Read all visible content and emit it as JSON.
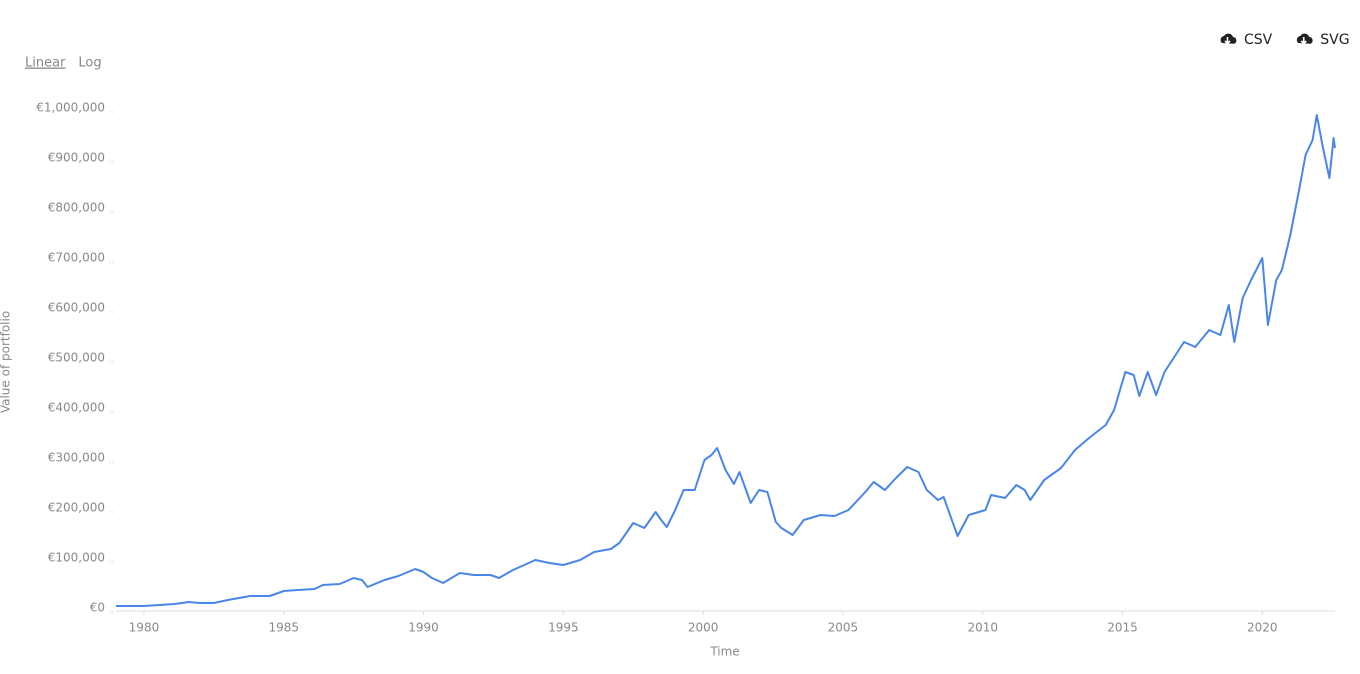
{
  "scale_options": [
    "Linear",
    "Log"
  ],
  "downloads": [
    "CSV",
    "SVG"
  ],
  "chart_data": {
    "type": "line",
    "x_label": "Time",
    "y_label": "Value of portfolio",
    "log_scale": false,
    "grid": false,
    "xlim": [
      1979,
      2022.6
    ],
    "xticks": [
      1980,
      1985,
      1990,
      1995,
      2000,
      2005,
      2010,
      2015,
      2020
    ],
    "ylim": [
      0,
      1000000
    ],
    "yticks": [
      {
        "value": 0,
        "label": "€0"
      },
      {
        "value": 100000,
        "label": "€100,000"
      },
      {
        "value": 200000,
        "label": "€200,000"
      },
      {
        "value": 300000,
        "label": "€300,000"
      },
      {
        "value": 400000,
        "label": "€400,000"
      },
      {
        "value": 500000,
        "label": "€500,000"
      },
      {
        "value": 600000,
        "label": "€600,000"
      },
      {
        "value": 700000,
        "label": "€700,000"
      },
      {
        "value": 800000,
        "label": "€800,000"
      },
      {
        "value": 900000,
        "label": "€900,000"
      },
      {
        "value": 1000000,
        "label": "€1,000,000"
      }
    ],
    "x": [
      1979.0,
      1980.0,
      1981.1,
      1981.6,
      1982.0,
      1982.5,
      1983.0,
      1983.8,
      1984.5,
      1985.0,
      1985.5,
      1986.1,
      1986.4,
      1987.0,
      1987.5,
      1987.8,
      1988.0,
      1988.6,
      1989.1,
      1989.7,
      1990.0,
      1990.3,
      1990.7,
      1991.3,
      1991.8,
      1992.4,
      1992.7,
      1993.2,
      1994.0,
      1994.5,
      1995.0,
      1995.6,
      1996.1,
      1996.7,
      1997.0,
      1997.5,
      1997.9,
      1998.3,
      1998.5,
      1998.7,
      1999.0,
      1999.3,
      1999.7,
      2000.05,
      2000.3,
      2000.5,
      2000.8,
      2001.1,
      2001.3,
      2001.7,
      2002.0,
      2002.3,
      2002.6,
      2002.8,
      2003.2,
      2003.6,
      2004.2,
      2004.7,
      2005.2,
      2005.8,
      2006.1,
      2006.5,
      2006.9,
      2007.3,
      2007.7,
      2008.0,
      2008.4,
      2008.6,
      2009.1,
      2009.5,
      2010.1,
      2010.3,
      2010.8,
      2011.2,
      2011.5,
      2011.7,
      2012.2,
      2012.8,
      2013.3,
      2013.8,
      2014.4,
      2014.7,
      2015.1,
      2015.4,
      2015.6,
      2015.9,
      2016.2,
      2016.5,
      2016.9,
      2017.2,
      2017.6,
      2018.1,
      2018.5,
      2018.8,
      2019.0,
      2019.3,
      2019.6,
      2020.0,
      2020.2,
      2020.5,
      2020.7,
      2021.0,
      2021.3,
      2021.55,
      2021.8,
      2021.95,
      2022.15,
      2022.4,
      2022.55,
      2022.6
    ],
    "series": [
      {
        "name": "Value of portfolio",
        "color": "#4a86e8",
        "values": [
          4000,
          4000,
          8000,
          12000,
          10000,
          10000,
          16000,
          24000,
          24000,
          34000,
          36000,
          38000,
          46000,
          48000,
          60000,
          56000,
          42000,
          56000,
          64000,
          78000,
          72000,
          60000,
          50000,
          70000,
          66000,
          66000,
          60000,
          76000,
          96000,
          90000,
          86000,
          96000,
          112000,
          118000,
          130000,
          170000,
          160000,
          192000,
          176000,
          162000,
          196000,
          236000,
          236000,
          296000,
          306000,
          320000,
          276000,
          248000,
          272000,
          210000,
          236000,
          232000,
          172000,
          160000,
          146000,
          176000,
          186000,
          184000,
          196000,
          232000,
          252000,
          236000,
          260000,
          282000,
          272000,
          236000,
          216000,
          222000,
          144000,
          186000,
          196000,
          226000,
          220000,
          246000,
          236000,
          216000,
          256000,
          280000,
          316000,
          340000,
          366000,
          396000,
          472000,
          466000,
          424000,
          472000,
          426000,
          472000,
          506000,
          532000,
          522000,
          556000,
          546000,
          606000,
          532000,
          620000,
          656000,
          700000,
          566000,
          656000,
          676000,
          746000,
          832000,
          906000,
          936000,
          986000,
          926000,
          860000,
          940000,
          920000
        ]
      }
    ]
  }
}
